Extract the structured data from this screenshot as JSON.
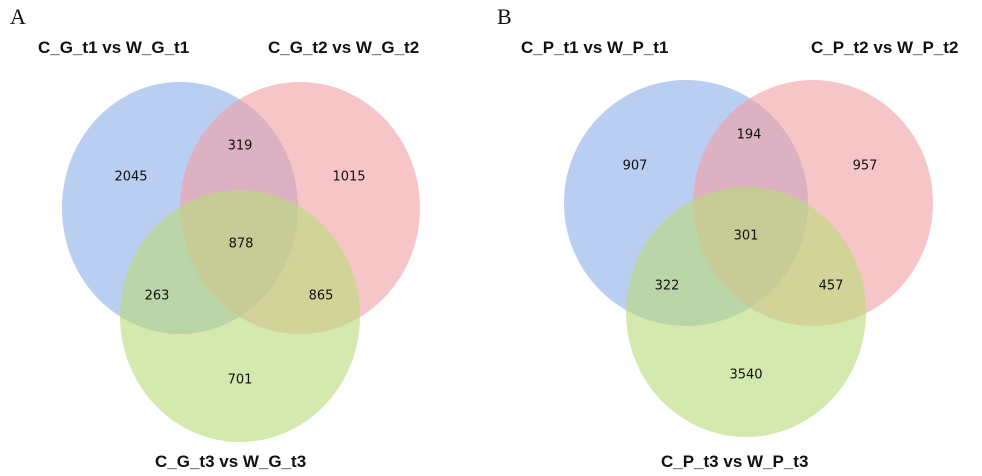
{
  "panels": [
    {
      "letter": "A",
      "sets": [
        "C_G_t1 vs W_G_t1",
        "C_G_t2 vs W_G_t2",
        "C_G_t3 vs W_G_t3"
      ],
      "counts": {
        "only_1": "2045",
        "only_2": "1015",
        "only_3": "701",
        "sets_1_2": "319",
        "sets_1_3": "263",
        "sets_2_3": "865",
        "all": "878"
      }
    },
    {
      "letter": "B",
      "sets": [
        "C_P_t1 vs W_P_t1",
        "C_P_t2 vs W_P_t2",
        "C_P_t3 vs W_P_t3"
      ],
      "counts": {
        "only_1": "907",
        "only_2": "957",
        "only_3": "3540",
        "sets_1_2": "194",
        "sets_1_3": "322",
        "sets_2_3": "457",
        "all": "301"
      }
    }
  ],
  "colors": {
    "set1": "#8fb0ea",
    "set2": "#f0a1a4",
    "set3": "#b9db7a"
  }
}
